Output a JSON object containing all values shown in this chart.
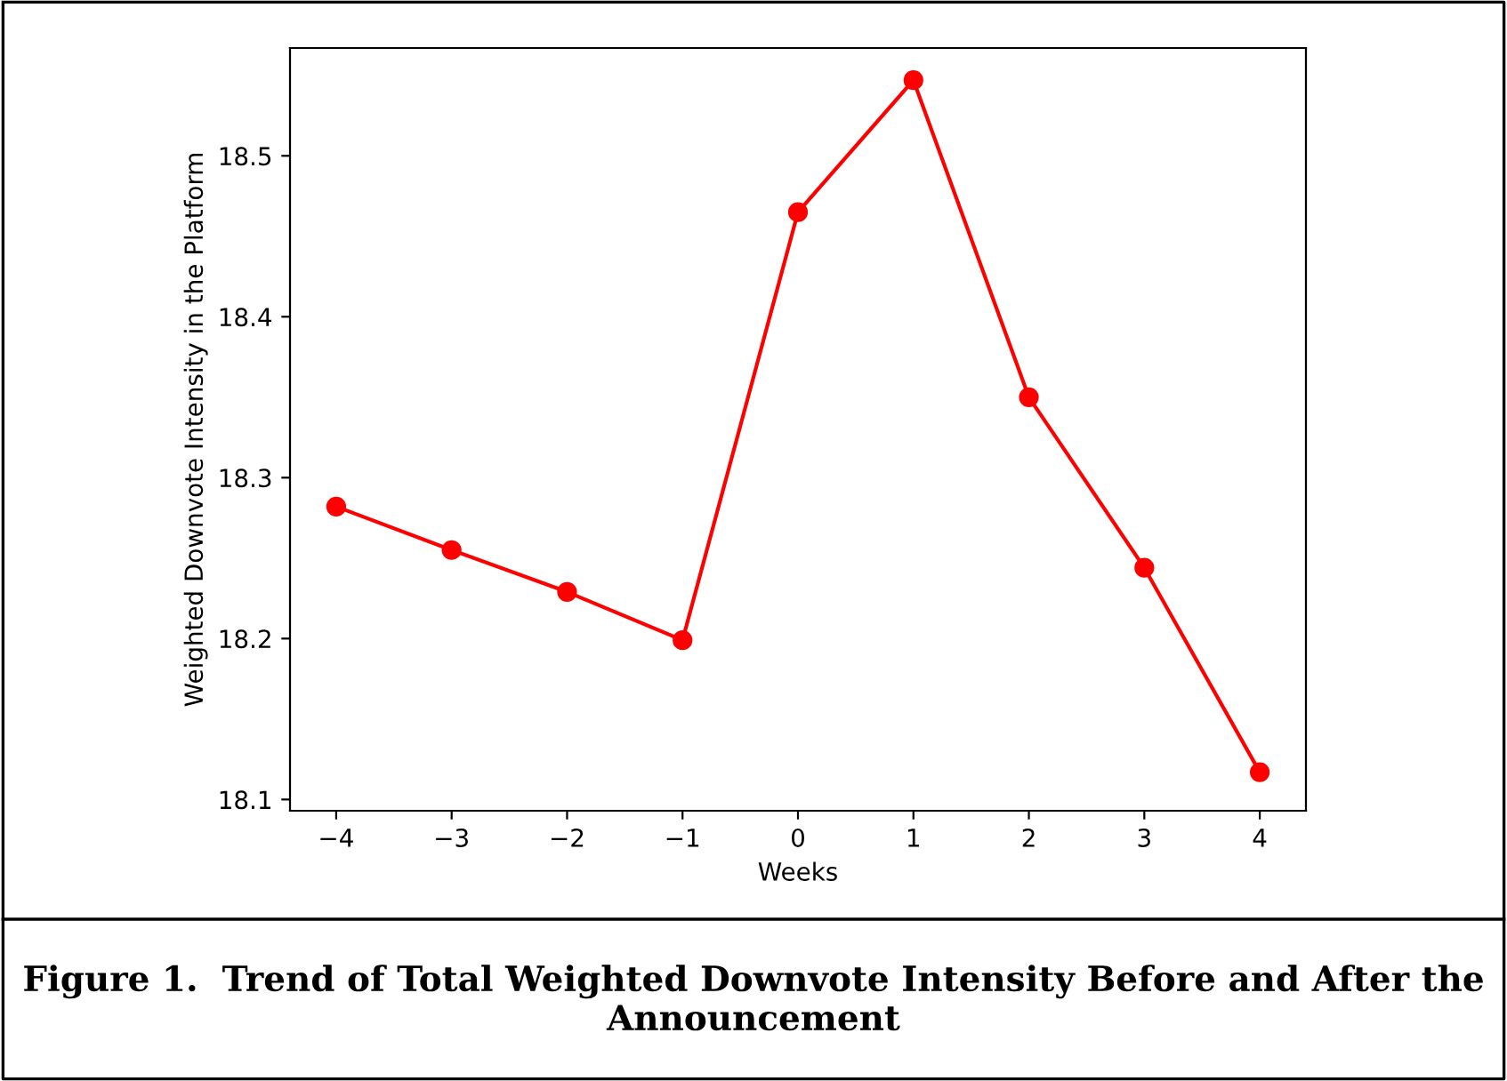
{
  "chart_data": {
    "type": "line",
    "title": "Figure 1.  Trend of Total Weighted Downvote Intensity Before and After the Announcement",
    "xlabel": "Weeks",
    "ylabel": "Weighted Downvote Intensity in the Platform",
    "x": [
      -4,
      -3,
      -2,
      -1,
      0,
      1,
      2,
      3,
      4
    ],
    "series": [
      {
        "color": "#ff0000",
        "values": [
          18.282,
          18.255,
          18.229,
          18.199,
          18.465,
          18.547,
          18.35,
          18.244,
          18.117
        ]
      }
    ],
    "xlim": [
      -4.4,
      4.4
    ],
    "ylim": [
      18.093,
      18.567
    ],
    "xticks": [
      {
        "value": -4,
        "label": "−4"
      },
      {
        "value": -3,
        "label": "−3"
      },
      {
        "value": -2,
        "label": "−2"
      },
      {
        "value": -1,
        "label": "−1"
      },
      0,
      1,
      2,
      3,
      4
    ],
    "yticks": [
      18.1,
      18.2,
      18.3,
      18.4,
      18.5
    ],
    "marker": "circle",
    "line_style": "solid",
    "grid": false,
    "legend": false
  }
}
